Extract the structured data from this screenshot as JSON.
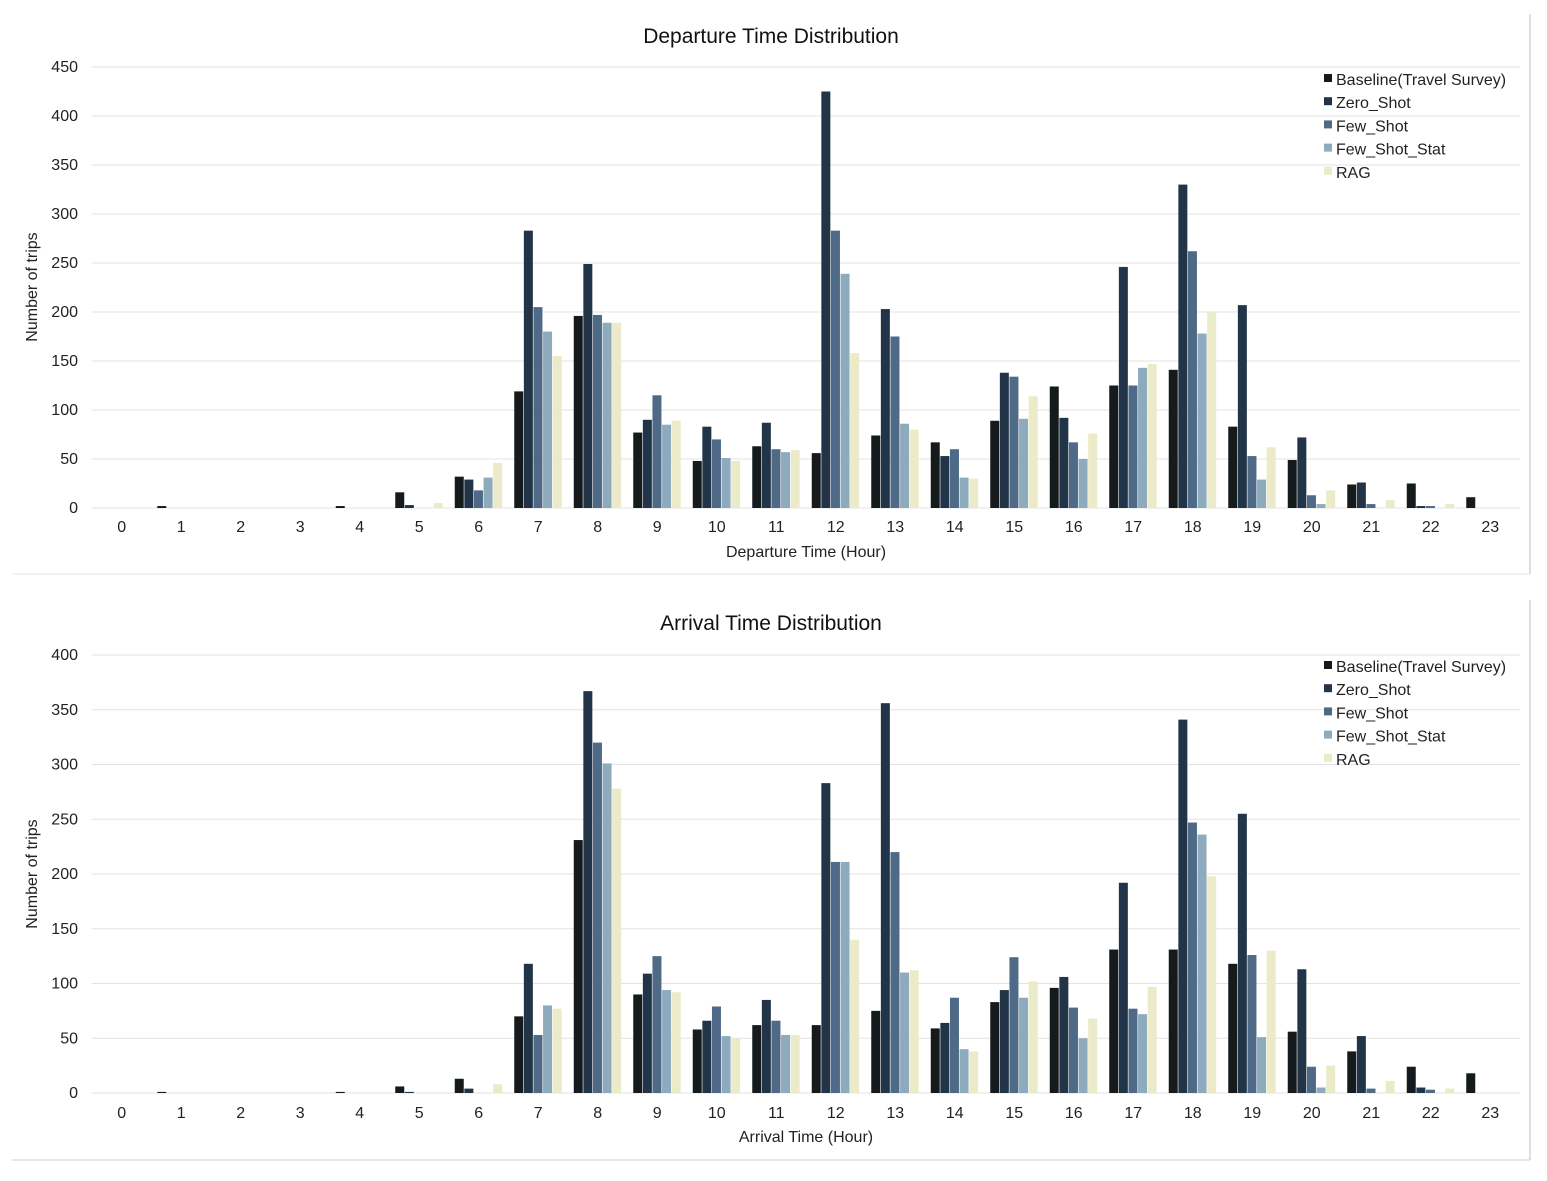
{
  "colors": {
    "series": [
      "#151a1c",
      "#223448",
      "#4e6a86",
      "#8eabbd",
      "#ecebc9"
    ],
    "grid": "#e3e3e3",
    "text": "#222222",
    "frame": "#bfbfbf"
  },
  "chart_data": [
    {
      "type": "bar",
      "title": "Departure Time Distribution",
      "xlabel": "Departure Time (Hour)",
      "ylabel": "Number of trips",
      "ylim": [
        0,
        450
      ],
      "yticks": [
        "0",
        "50",
        "100",
        "150",
        "200",
        "250",
        "300",
        "350",
        "400",
        "450"
      ],
      "grid": true,
      "legend_position": "top-right",
      "categories": [
        "0",
        "1",
        "2",
        "3",
        "4",
        "5",
        "6",
        "7",
        "8",
        "9",
        "10",
        "11",
        "12",
        "13",
        "14",
        "15",
        "16",
        "17",
        "18",
        "19",
        "20",
        "21",
        "22",
        "23"
      ],
      "series": [
        {
          "name": "Baseline(Travel Survey)",
          "values": [
            0,
            2,
            0,
            0,
            2,
            16,
            32,
            119,
            196,
            77,
            48,
            63,
            56,
            74,
            67,
            89,
            124,
            125,
            141,
            83,
            49,
            24,
            25,
            11
          ]
        },
        {
          "name": "Zero_Shot",
          "values": [
            0,
            0,
            0,
            0,
            0,
            3,
            29,
            283,
            249,
            90,
            83,
            87,
            425,
            203,
            53,
            138,
            92,
            246,
            330,
            207,
            72,
            26,
            2,
            0
          ]
        },
        {
          "name": "Few_Shot",
          "values": [
            0,
            0,
            0,
            0,
            0,
            0,
            18,
            205,
            197,
            115,
            70,
            60,
            283,
            175,
            60,
            134,
            67,
            125,
            262,
            53,
            13,
            4,
            2,
            0
          ]
        },
        {
          "name": "Few_Shot_Stat",
          "values": [
            0,
            0,
            0,
            0,
            0,
            0,
            31,
            180,
            189,
            85,
            51,
            57,
            239,
            86,
            31,
            91,
            50,
            143,
            178,
            29,
            4,
            0,
            0,
            0
          ]
        },
        {
          "name": "RAG",
          "values": [
            0,
            0,
            0,
            0,
            0,
            5,
            46,
            155,
            189,
            89,
            48,
            59,
            158,
            80,
            30,
            114,
            76,
            147,
            200,
            62,
            18,
            8,
            4,
            0
          ]
        }
      ]
    },
    {
      "type": "bar",
      "title": "Arrival Time Distribution",
      "xlabel": "Arrival Time (Hour)",
      "ylabel": "Number of trips",
      "ylim": [
        0,
        400
      ],
      "yticks": [
        "0",
        "50",
        "100",
        "150",
        "200",
        "250",
        "300",
        "350",
        "400"
      ],
      "grid": true,
      "legend_position": "top-right",
      "categories": [
        "0",
        "1",
        "2",
        "3",
        "4",
        "5",
        "6",
        "7",
        "8",
        "9",
        "10",
        "11",
        "12",
        "13",
        "14",
        "15",
        "16",
        "17",
        "18",
        "19",
        "20",
        "21",
        "22",
        "23"
      ],
      "series": [
        {
          "name": "Baseline(Travel Survey)",
          "values": [
            0,
            1,
            0,
            0,
            1,
            6,
            13,
            70,
            231,
            90,
            58,
            62,
            62,
            75,
            59,
            83,
            96,
            131,
            131,
            118,
            56,
            38,
            24,
            18
          ]
        },
        {
          "name": "Zero_Shot",
          "values": [
            0,
            0,
            0,
            0,
            0,
            1,
            4,
            118,
            367,
            109,
            66,
            85,
            283,
            356,
            64,
            94,
            106,
            192,
            341,
            255,
            113,
            52,
            5,
            0
          ]
        },
        {
          "name": "Few_Shot",
          "values": [
            0,
            0,
            0,
            0,
            0,
            0,
            0,
            53,
            320,
            125,
            79,
            66,
            211,
            220,
            87,
            124,
            78,
            77,
            247,
            126,
            24,
            4,
            3,
            0
          ]
        },
        {
          "name": "Few_Shot_Stat",
          "values": [
            0,
            0,
            0,
            0,
            0,
            0,
            0,
            80,
            301,
            94,
            52,
            53,
            211,
            110,
            40,
            87,
            50,
            72,
            236,
            51,
            5,
            0,
            0,
            0
          ]
        },
        {
          "name": "RAG",
          "values": [
            0,
            0,
            0,
            0,
            0,
            0,
            8,
            77,
            278,
            92,
            50,
            53,
            140,
            112,
            38,
            102,
            68,
            97,
            198,
            130,
            25,
            11,
            4,
            0
          ]
        }
      ]
    }
  ]
}
